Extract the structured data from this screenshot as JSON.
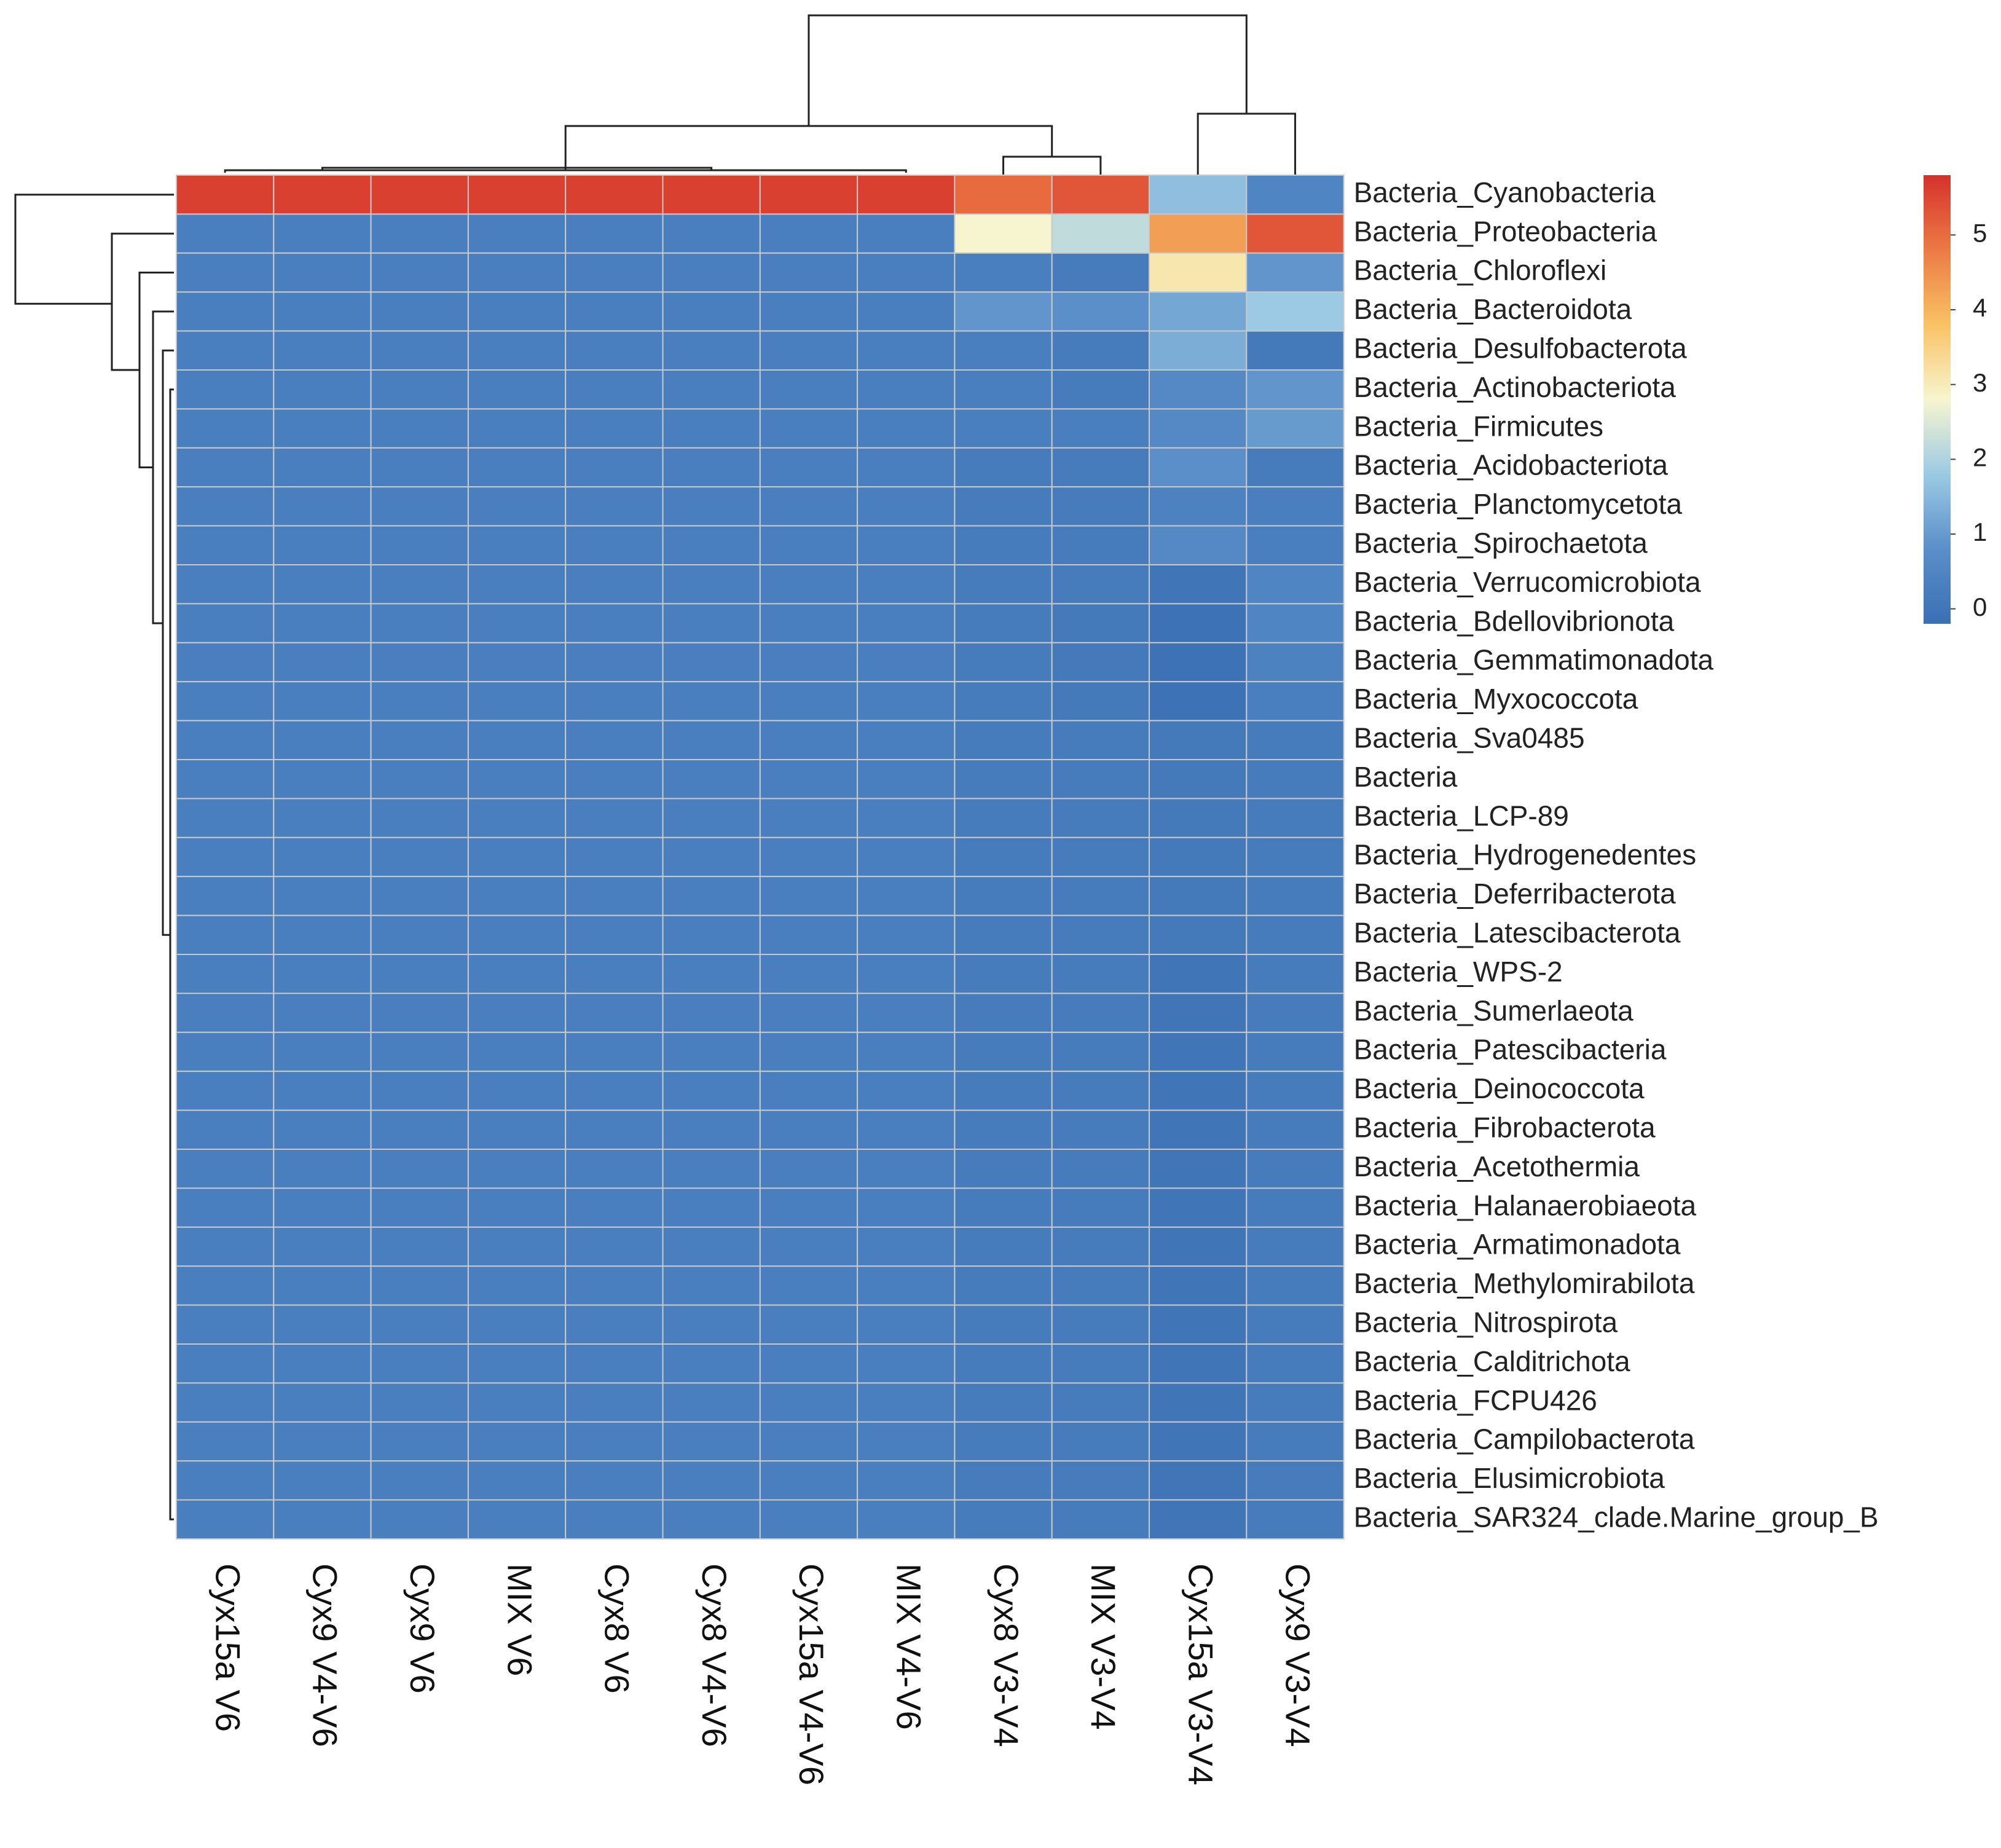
{
  "chart_data": {
    "type": "heatmap",
    "title": "",
    "xlabel": "",
    "ylabel": "",
    "columns": [
      "Cyx15a V6",
      "Cyx9 V4-V6",
      "Cyx9 V6",
      "MIX V6",
      "Cyx8 V6",
      "Cyx8 V4-V6",
      "Cyx15a V4-V6",
      "MIX V4-V6",
      "Cyx8 V3-V4",
      "MIX V3-V4",
      "Cyx15a V3-V4",
      "Cyx9 V3-V4"
    ],
    "rows": [
      "Bacteria_Cyanobacteria",
      "Bacteria_Proteobacteria",
      "Bacteria_Chloroflexi",
      "Bacteria_Bacteroidota",
      "Bacteria_Desulfobacterota",
      "Bacteria_Actinobacteriota",
      "Bacteria_Firmicutes",
      "Bacteria_Acidobacteriota",
      "Bacteria_Planctomycetota",
      "Bacteria_Spirochaetota",
      "Bacteria_Verrucomicrobiota",
      "Bacteria_Bdellovibrionota",
      "Bacteria_Gemmatimonadota",
      "Bacteria_Myxococcota",
      "Bacteria_Sva0485",
      "Bacteria",
      "Bacteria_LCP-89",
      "Bacteria_Hydrogenedentes",
      "Bacteria_Deferribacterota",
      "Bacteria_Latescibacterota",
      "Bacteria_WPS-2",
      "Bacteria_Sumerlaeota",
      "Bacteria_Patescibacteria",
      "Bacteria_Deinococcota",
      "Bacteria_Fibrobacterota",
      "Bacteria_Acetothermia",
      "Bacteria_Halanaerobiaeota",
      "Bacteria_Armatimonadota",
      "Bacteria_Methylomirabilota",
      "Bacteria_Nitrospirota",
      "Bacteria_Calditrichota",
      "Bacteria_FCPU426",
      "Bacteria_Campilobacterota",
      "Bacteria_Elusimicrobiota",
      "Bacteria_SAR324_clade.Marine_group_B"
    ],
    "values": [
      [
        5.6,
        5.6,
        5.6,
        5.6,
        5.6,
        5.6,
        5.6,
        5.6,
        5.0,
        5.3,
        1.6,
        0.5
      ],
      [
        0.3,
        0.3,
        0.3,
        0.3,
        0.3,
        0.3,
        0.3,
        0.3,
        2.8,
        2.2,
        4.3,
        5.3
      ],
      [
        0.3,
        0.3,
        0.3,
        0.3,
        0.3,
        0.3,
        0.3,
        0.3,
        0.3,
        0.2,
        3.1,
        0.9
      ],
      [
        0.3,
        0.3,
        0.3,
        0.3,
        0.3,
        0.3,
        0.3,
        0.3,
        0.9,
        0.8,
        1.2,
        1.8
      ],
      [
        0.3,
        0.3,
        0.3,
        0.3,
        0.3,
        0.3,
        0.3,
        0.3,
        0.3,
        0.2,
        1.3,
        0.1
      ],
      [
        0.3,
        0.3,
        0.3,
        0.3,
        0.3,
        0.3,
        0.3,
        0.3,
        0.3,
        0.2,
        0.6,
        0.9
      ],
      [
        0.3,
        0.3,
        0.3,
        0.3,
        0.3,
        0.3,
        0.3,
        0.3,
        0.3,
        0.3,
        0.6,
        1.0
      ],
      [
        0.3,
        0.3,
        0.3,
        0.3,
        0.3,
        0.3,
        0.3,
        0.3,
        0.2,
        0.2,
        0.8,
        0.2
      ],
      [
        0.3,
        0.3,
        0.3,
        0.3,
        0.3,
        0.3,
        0.3,
        0.3,
        0.2,
        0.2,
        0.4,
        0.3
      ],
      [
        0.3,
        0.3,
        0.3,
        0.3,
        0.3,
        0.3,
        0.3,
        0.3,
        0.2,
        0.2,
        0.6,
        0.3
      ],
      [
        0.3,
        0.3,
        0.3,
        0.3,
        0.3,
        0.3,
        0.3,
        0.3,
        0.2,
        0.2,
        0.0,
        0.5
      ],
      [
        0.3,
        0.3,
        0.3,
        0.3,
        0.3,
        0.3,
        0.3,
        0.3,
        0.2,
        0.1,
        -0.1,
        0.5
      ],
      [
        0.3,
        0.3,
        0.3,
        0.3,
        0.3,
        0.3,
        0.3,
        0.3,
        0.2,
        0.1,
        -0.1,
        0.4
      ],
      [
        0.3,
        0.3,
        0.3,
        0.3,
        0.3,
        0.3,
        0.3,
        0.3,
        0.2,
        0.1,
        -0.1,
        0.3
      ],
      [
        0.3,
        0.3,
        0.3,
        0.3,
        0.3,
        0.3,
        0.3,
        0.3,
        0.2,
        0.2,
        0.1,
        0.2
      ],
      [
        0.3,
        0.3,
        0.3,
        0.3,
        0.3,
        0.3,
        0.3,
        0.3,
        0.2,
        0.2,
        0.1,
        0.2
      ],
      [
        0.3,
        0.3,
        0.3,
        0.3,
        0.3,
        0.3,
        0.3,
        0.3,
        0.2,
        0.2,
        0.1,
        0.2
      ],
      [
        0.3,
        0.3,
        0.3,
        0.3,
        0.3,
        0.3,
        0.3,
        0.3,
        0.2,
        0.2,
        0.1,
        0.2
      ],
      [
        0.3,
        0.3,
        0.3,
        0.3,
        0.3,
        0.3,
        0.3,
        0.3,
        0.2,
        0.2,
        0.1,
        0.2
      ],
      [
        0.3,
        0.3,
        0.3,
        0.3,
        0.3,
        0.3,
        0.3,
        0.3,
        0.2,
        0.2,
        0.1,
        0.2
      ],
      [
        0.3,
        0.3,
        0.3,
        0.3,
        0.3,
        0.3,
        0.3,
        0.3,
        0.2,
        0.2,
        0.0,
        0.2
      ],
      [
        0.3,
        0.3,
        0.3,
        0.3,
        0.3,
        0.3,
        0.3,
        0.3,
        0.2,
        0.2,
        0.0,
        0.2
      ],
      [
        0.3,
        0.3,
        0.3,
        0.3,
        0.3,
        0.3,
        0.3,
        0.3,
        0.2,
        0.2,
        0.0,
        0.2
      ],
      [
        0.3,
        0.3,
        0.3,
        0.3,
        0.3,
        0.3,
        0.3,
        0.3,
        0.2,
        0.2,
        0.0,
        0.2
      ],
      [
        0.3,
        0.3,
        0.3,
        0.3,
        0.3,
        0.3,
        0.3,
        0.3,
        0.2,
        0.2,
        0.0,
        0.2
      ],
      [
        0.3,
        0.3,
        0.3,
        0.3,
        0.3,
        0.3,
        0.3,
        0.3,
        0.2,
        0.2,
        0.0,
        0.2
      ],
      [
        0.3,
        0.3,
        0.3,
        0.3,
        0.3,
        0.3,
        0.3,
        0.3,
        0.2,
        0.2,
        0.0,
        0.2
      ],
      [
        0.3,
        0.3,
        0.3,
        0.3,
        0.3,
        0.3,
        0.3,
        0.3,
        0.2,
        0.2,
        0.0,
        0.2
      ],
      [
        0.3,
        0.3,
        0.3,
        0.3,
        0.3,
        0.3,
        0.3,
        0.3,
        0.2,
        0.2,
        0.0,
        0.2
      ],
      [
        0.3,
        0.3,
        0.3,
        0.3,
        0.3,
        0.3,
        0.3,
        0.3,
        0.2,
        0.2,
        0.0,
        0.2
      ],
      [
        0.3,
        0.3,
        0.3,
        0.3,
        0.3,
        0.3,
        0.3,
        0.3,
        0.2,
        0.2,
        0.0,
        0.2
      ],
      [
        0.3,
        0.3,
        0.3,
        0.3,
        0.3,
        0.3,
        0.3,
        0.3,
        0.2,
        0.2,
        0.0,
        0.2
      ],
      [
        0.3,
        0.3,
        0.3,
        0.3,
        0.3,
        0.3,
        0.3,
        0.3,
        0.2,
        0.2,
        0.0,
        0.2
      ],
      [
        0.3,
        0.3,
        0.3,
        0.3,
        0.3,
        0.3,
        0.3,
        0.3,
        0.2,
        0.2,
        0.0,
        0.2
      ],
      [
        0.3,
        0.3,
        0.3,
        0.3,
        0.3,
        0.3,
        0.3,
        0.3,
        0.2,
        0.2,
        0.0,
        0.2
      ]
    ],
    "color_scale": {
      "domain": [
        -0.2,
        5.8
      ],
      "colors": [
        "#3a6fb4",
        "#5a8fc9",
        "#9ccae4",
        "#f7f5cf",
        "#f9c264",
        "#ec7a45",
        "#d6312b"
      ],
      "ticks": [
        0,
        1,
        2,
        3,
        4,
        5
      ]
    },
    "legend_position": "top-right",
    "grid": true
  }
}
